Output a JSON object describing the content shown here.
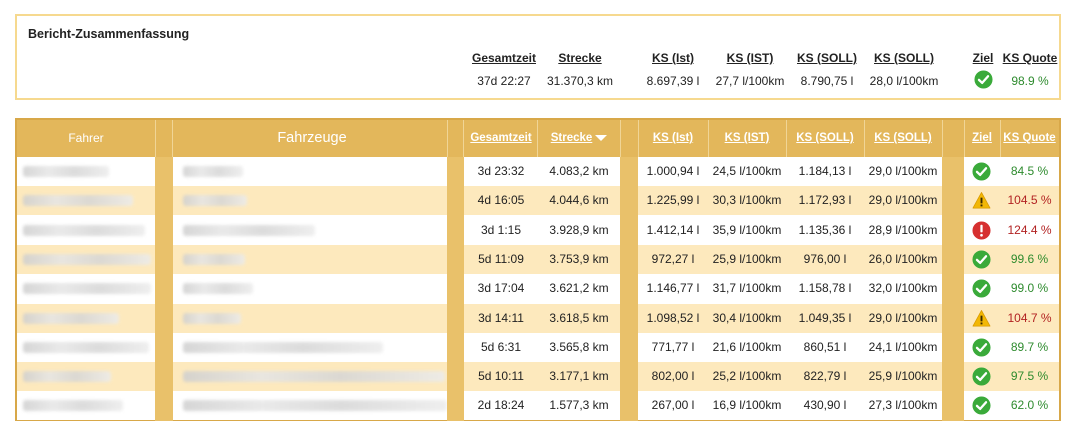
{
  "summary": {
    "title": "Bericht-Zusammenfassung",
    "headers": {
      "gesamtzeit": "Gesamtzeit",
      "strecke": "Strecke",
      "ks_ist_l": "KS (Ist)",
      "ks_ist_per": "KS (IST)",
      "ks_soll_l": "KS (SOLL)",
      "ks_soll_per": "KS (SOLL)",
      "ziel": "Ziel",
      "quote": "KS Quote"
    },
    "values": {
      "gesamtzeit": "37d 22:27",
      "strecke": "31.370,3 km",
      "ks_ist_l": "8.697,39 l",
      "ks_ist_per": "27,7 l/100km",
      "ks_soll_l": "8.790,75 l",
      "ks_soll_per": "28,0 l/100km",
      "ziel_status": "ok",
      "quote": "98.9 %"
    }
  },
  "table": {
    "headers": {
      "fahrer": "Fahrer",
      "fahrzeuge": "Fahrzeuge",
      "gesamtzeit": "Gesamtzeit",
      "strecke": "Strecke",
      "ks_ist_l": "KS (Ist)",
      "ks_ist_per": "KS (IST)",
      "ks_soll_l": "KS (SOLL)",
      "ks_soll_per": "KS (SOLL)",
      "ziel": "Ziel",
      "quote": "KS Quote"
    },
    "rows": [
      {
        "gesamtzeit": "3d 23:32",
        "strecke": "4.083,2 km",
        "ks_ist_l": "1.000,94 l",
        "ks_ist_per": "24,5 l/100km",
        "ks_soll_l": "1.184,13 l",
        "ks_soll_per": "29,0 l/100km",
        "status": "ok",
        "quote": "84.5 %"
      },
      {
        "gesamtzeit": "4d 16:05",
        "strecke": "4.044,6 km",
        "ks_ist_l": "1.225,99 l",
        "ks_ist_per": "30,3 l/100km",
        "ks_soll_l": "1.172,93 l",
        "ks_soll_per": "29,0 l/100km",
        "status": "warn",
        "quote": "104.5 %"
      },
      {
        "gesamtzeit": "3d 1:15",
        "strecke": "3.928,9 km",
        "ks_ist_l": "1.412,14 l",
        "ks_ist_per": "35,9 l/100km",
        "ks_soll_l": "1.135,36 l",
        "ks_soll_per": "28,9 l/100km",
        "status": "error",
        "quote": "124.4 %"
      },
      {
        "gesamtzeit": "5d 11:09",
        "strecke": "3.753,9 km",
        "ks_ist_l": "972,27 l",
        "ks_ist_per": "25,9 l/100km",
        "ks_soll_l": "976,00 l",
        "ks_soll_per": "26,0 l/100km",
        "status": "ok",
        "quote": "99.6 %"
      },
      {
        "gesamtzeit": "3d 17:04",
        "strecke": "3.621,2 km",
        "ks_ist_l": "1.146,77 l",
        "ks_ist_per": "31,7 l/100km",
        "ks_soll_l": "1.158,78 l",
        "ks_soll_per": "32,0 l/100km",
        "status": "ok",
        "quote": "99.0 %"
      },
      {
        "gesamtzeit": "3d 14:11",
        "strecke": "3.618,5 km",
        "ks_ist_l": "1.098,52 l",
        "ks_ist_per": "30,4 l/100km",
        "ks_soll_l": "1.049,35 l",
        "ks_soll_per": "29,0 l/100km",
        "status": "warn",
        "quote": "104.7 %"
      },
      {
        "gesamtzeit": "5d 6:31",
        "strecke": "3.565,8 km",
        "ks_ist_l": "771,77 l",
        "ks_ist_per": "21,6 l/100km",
        "ks_soll_l": "860,51 l",
        "ks_soll_per": "24,1 l/100km",
        "status": "ok",
        "quote": "89.7 %"
      },
      {
        "gesamtzeit": "5d 10:11",
        "strecke": "3.177,1 km",
        "ks_ist_l": "802,00 l",
        "ks_ist_per": "25,2 l/100km",
        "ks_soll_l": "822,79 l",
        "ks_soll_per": "25,9 l/100km",
        "status": "ok",
        "quote": "97.5 %"
      },
      {
        "gesamtzeit": "2d 18:24",
        "strecke": "1.577,3 km",
        "ks_ist_l": "267,00 l",
        "ks_ist_per": "16,9 l/100km",
        "ks_soll_l": "430,90 l",
        "ks_soll_per": "27,3 l/100km",
        "status": "ok",
        "quote": "62.0 %"
      }
    ]
  },
  "colors": {
    "header_bg": "#e3b75b",
    "row_alt": "#fde9bd",
    "ok_green": "#2e8b2e",
    "bad_red": "#b22222",
    "warn_yellow": "#f2b705"
  }
}
